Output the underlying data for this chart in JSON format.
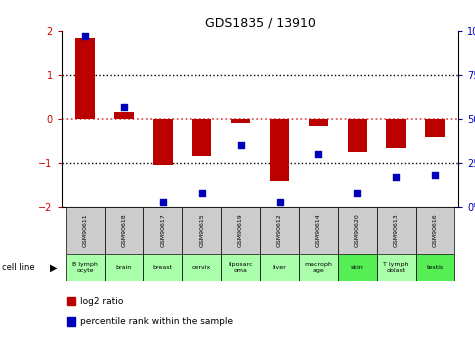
{
  "title": "GDS1835 / 13910",
  "samples": [
    "GSM90611",
    "GSM90618",
    "GSM90617",
    "GSM90615",
    "GSM90619",
    "GSM90612",
    "GSM90614",
    "GSM90620",
    "GSM90613",
    "GSM90616"
  ],
  "cell_lines": [
    "B lymph\nocyte",
    "brain",
    "breast",
    "cervix",
    "liposarc\noma",
    "liver",
    "macroph\nage",
    "skin",
    "T lymph\noblast",
    "testis"
  ],
  "cell_line_colors": [
    "#aaffaa",
    "#aaffaa",
    "#aaffaa",
    "#aaffaa",
    "#aaffaa",
    "#aaffaa",
    "#aaffaa",
    "#55ee55",
    "#aaffaa",
    "#55ee55"
  ],
  "log2_ratio": [
    1.85,
    0.15,
    -1.05,
    -0.85,
    -0.1,
    -1.4,
    -0.15,
    -0.75,
    -0.65,
    -0.4
  ],
  "percentile_rank": [
    97,
    57,
    3,
    8,
    35,
    3,
    30,
    8,
    17,
    18
  ],
  "ylim": [
    -2,
    2
  ],
  "yticks_left": [
    -2,
    -1,
    0,
    1,
    2
  ],
  "yticks_right": [
    0,
    25,
    50,
    75,
    100
  ],
  "bar_color": "#bb0000",
  "dot_color": "#0000bb",
  "zero_line_color": "#dd4444",
  "sample_box_color": "#cccccc",
  "ylabel_right_color": "#0000bb",
  "ylabel_left_color": "#cc0000",
  "bar_width": 0.5,
  "dot_size": 20
}
